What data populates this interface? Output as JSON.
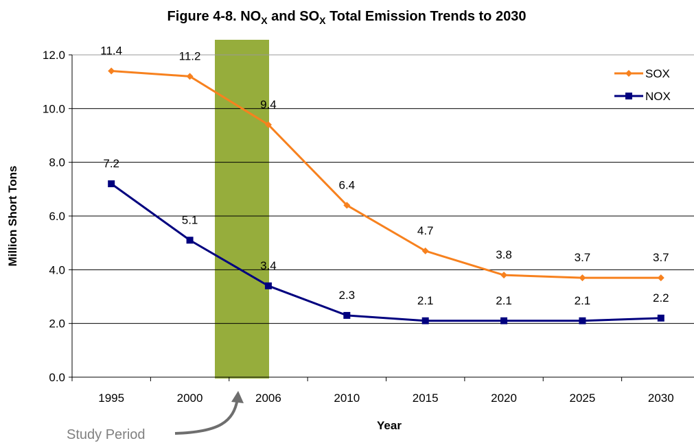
{
  "chart_data": {
    "type": "line",
    "title": [
      "Figure 4-8. NO",
      "X",
      " and SO",
      "X",
      " Total Emission Trends to 2030"
    ],
    "x_label": "Year",
    "y_label": "Million Short Tons",
    "categories": [
      "1995",
      "2000",
      "2006",
      "2010",
      "2015",
      "2020",
      "2025",
      "2030"
    ],
    "series": [
      {
        "name": "SOX",
        "color": "#f7811e",
        "marker": "diamond",
        "values": [
          11.4,
          11.2,
          9.4,
          6.4,
          4.7,
          3.8,
          3.7,
          3.7
        ]
      },
      {
        "name": "NOX",
        "color": "#00007f",
        "marker": "square",
        "values": [
          7.2,
          5.1,
          3.4,
          2.3,
          2.1,
          2.1,
          2.1,
          2.2
        ]
      }
    ],
    "ylim": [
      0,
      12
    ],
    "yticks": [
      {
        "value": 0,
        "label": "0.0"
      },
      {
        "value": 2,
        "label": "2.0"
      },
      {
        "value": 4,
        "label": "4.0"
      },
      {
        "value": 6,
        "label": "6.0"
      },
      {
        "value": 8,
        "label": "8.0"
      },
      {
        "value": 10,
        "label": "10.0"
      },
      {
        "value": 12,
        "label": "12.0"
      }
    ],
    "grid": true,
    "legend": "top-right",
    "annotation": "Study Period"
  }
}
